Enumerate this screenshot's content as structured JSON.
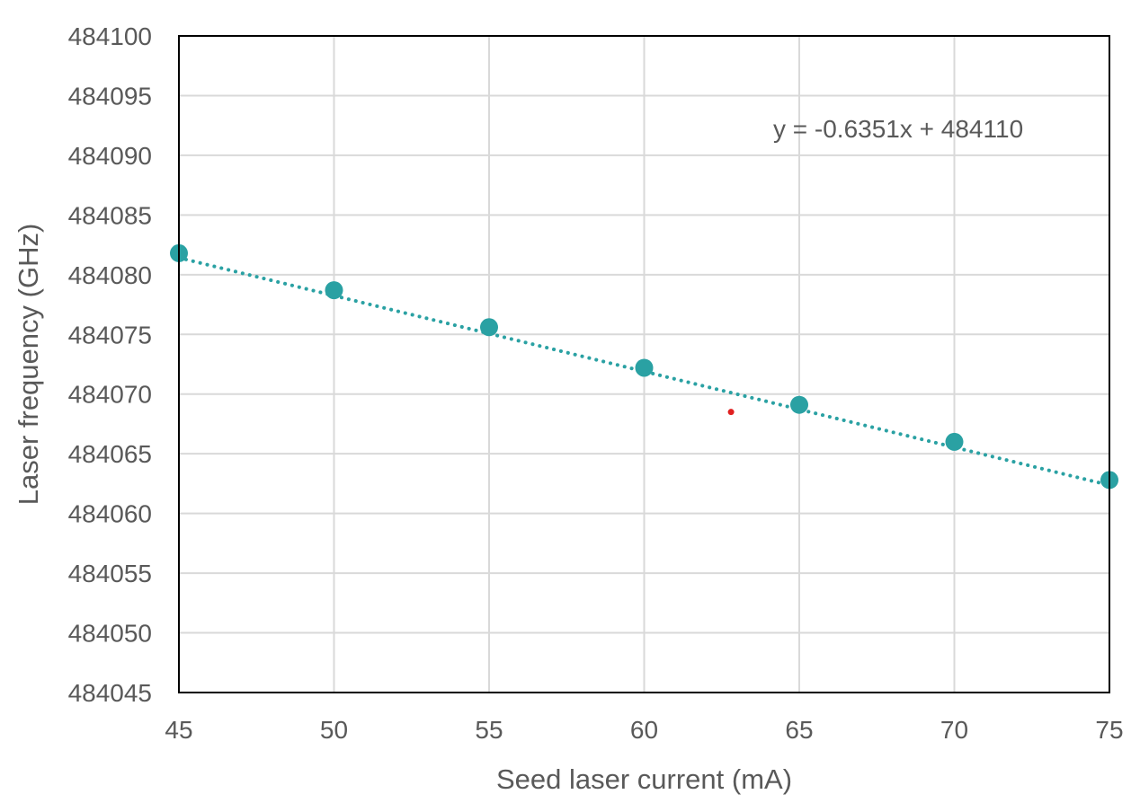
{
  "chart_data": {
    "type": "scatter",
    "title": "",
    "xlabel": "Seed laser current (mA)",
    "ylabel": "Laser frequency (GHz)",
    "xlim": [
      45,
      75
    ],
    "ylim": [
      484045,
      484100
    ],
    "x_ticks": [
      45,
      50,
      55,
      60,
      65,
      70,
      75
    ],
    "y_ticks": [
      484045,
      484050,
      484055,
      484060,
      484065,
      484070,
      484075,
      484080,
      484085,
      484090,
      484095,
      484100
    ],
    "x_tick_labels": [
      "45",
      "50",
      "55",
      "60",
      "65",
      "70",
      "75"
    ],
    "y_tick_labels": [
      "484045",
      "484050",
      "484055",
      "484060",
      "484065",
      "484070",
      "484075",
      "484080",
      "484085",
      "484090",
      "484095",
      "484100"
    ],
    "grid": true,
    "legend": "none",
    "series": [
      {
        "name": "Laser frequency",
        "color": "#2aa1a3",
        "x": [
          45,
          50,
          55,
          60,
          65,
          70,
          75
        ],
        "y": [
          484081.8,
          484078.7,
          484075.6,
          484072.2,
          484069.1,
          484066.0,
          484062.8
        ]
      }
    ],
    "trendline": {
      "type": "linear",
      "slope": -0.6351,
      "intercept": 484110,
      "equation": "y = -0.6351x + 484110",
      "equation_position": "top-right",
      "color": "#2aa1a3",
      "style": "dotted"
    },
    "marker_point": {
      "x": 62.8,
      "y": 484068.5,
      "color": "#e02020"
    }
  }
}
